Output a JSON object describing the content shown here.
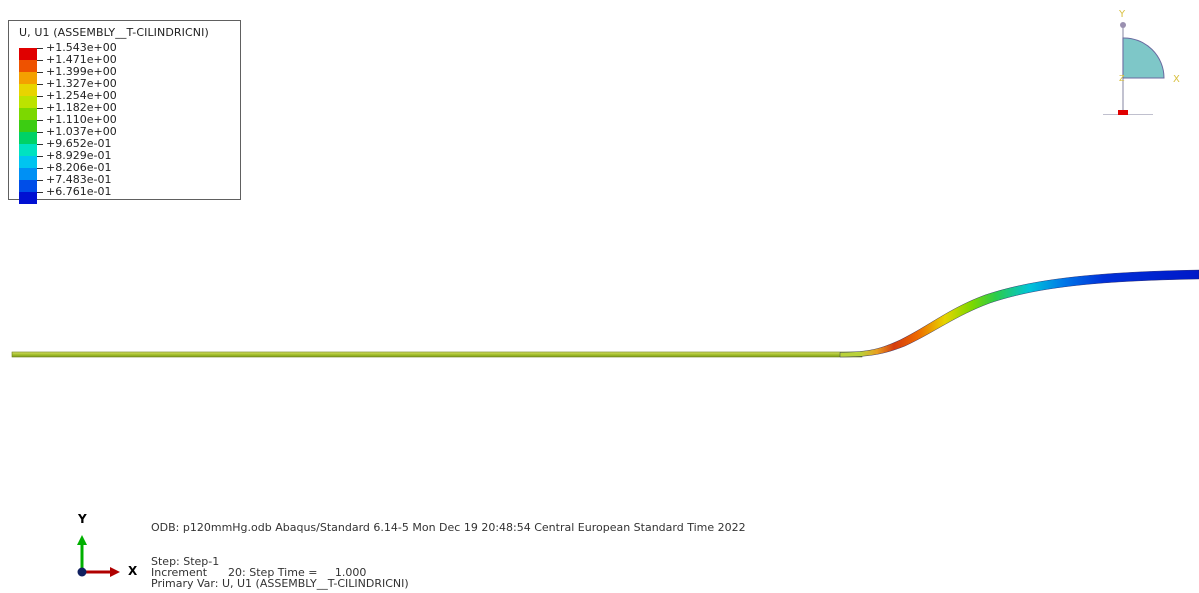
{
  "legend": {
    "title": "U, U1 (ASSEMBLY__T-CILINDRICNI)",
    "entries": [
      {
        "label": "+1.543e+00",
        "color": "#e00000"
      },
      {
        "label": "+1.471e+00",
        "color": "#ee5200"
      },
      {
        "label": "+1.399e+00",
        "color": "#f4a000"
      },
      {
        "label": "+1.327e+00",
        "color": "#e8d400"
      },
      {
        "label": "+1.254e+00",
        "color": "#bce300"
      },
      {
        "label": "+1.182e+00",
        "color": "#7cd800"
      },
      {
        "label": "+1.110e+00",
        "color": "#3ccc12"
      },
      {
        "label": "+1.037e+00",
        "color": "#00d266"
      },
      {
        "label": "+9.652e-01",
        "color": "#00e2c0"
      },
      {
        "label": "+8.929e-01",
        "color": "#00c4f0"
      },
      {
        "label": "+8.206e-01",
        "color": "#0090f4"
      },
      {
        "label": "+7.483e-01",
        "color": "#004ee8"
      },
      {
        "label": "+6.761e-01",
        "color": "#0010d2"
      }
    ]
  },
  "viewcube": {
    "y_label": "Y",
    "x_label": "X",
    "z_label": "Z"
  },
  "triad": {
    "y_label": "Y",
    "x_label": "X"
  },
  "info": {
    "odb_line": "ODB: p120mmHg.odb    Abaqus/Standard 6.14-5    Mon Dec 19 20:48:54 Central European Standard Time 2022",
    "step_line": "Step: Step-1",
    "increment_line": "Increment      20: Step Time =     1.000",
    "primary_var_line": "Primary Var: U, U1 (ASSEMBLY__T-CILINDRICNI)"
  },
  "colors": {
    "model_base": "#b9d23a",
    "viewcube_fill": "#7ec7c8"
  }
}
